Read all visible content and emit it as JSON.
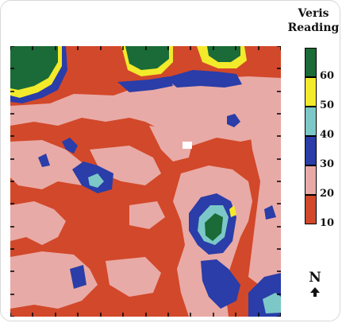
{
  "legend": {
    "title_line1": "Veris",
    "title_line2": "Reading",
    "classes": [
      {
        "label": "60",
        "color": "#1a6b37"
      },
      {
        "label": "50",
        "color": "#f2ea2a"
      },
      {
        "label": "40",
        "color": "#7cc8c8"
      },
      {
        "label": "30",
        "color": "#2a3da8"
      },
      {
        "label": "20",
        "color": "#e8aaa6"
      },
      {
        "label": "10",
        "color": "#d2482a"
      }
    ]
  },
  "north": {
    "letter": "N",
    "icon": "north-arrow-icon"
  },
  "colors": {
    "base": "#d2482a",
    "c20": "#e8aaa6",
    "c30": "#2a3da8",
    "c40": "#7cc8c8",
    "c50": "#f2ea2a",
    "c60": "#1a6b37",
    "nodata": "#ffffff",
    "ticks": "#000000"
  }
}
